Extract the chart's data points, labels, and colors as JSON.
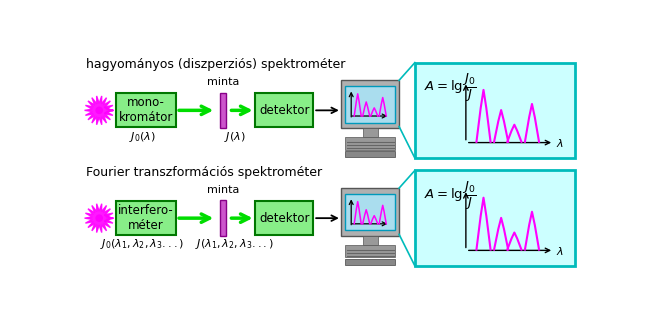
{
  "title1": "hagyományos (diszperziós) spektrométer",
  "title2": "Fourier transzformációs spektrométer",
  "box1_text": "mono-\nkromátor",
  "box2_text": "detektor",
  "box3_text": "interfero-\nméter",
  "box4_text": "detektor",
  "minta_text": "minta",
  "j0_lambda": "$J_0(\\lambda)$",
  "j_lambda": "$J(\\lambda)$",
  "j0_lambda2": "$J_0(\\lambda_1,\\lambda_2,\\lambda_3...)$",
  "j_lambda2": "$J(\\lambda_1,\\lambda_2,\\lambda_3...)$",
  "formula": "$A = \\mathrm{lg}\\,\\dfrac{J_0}{J}$",
  "lambda_label": "$\\lambda$",
  "green_color": "#00dd00",
  "magenta_color": "#ff00ff",
  "box_face": "#88ee88",
  "box_edge": "#007700",
  "cyan_face": "#ccffff",
  "cyan_edge": "#00bbbb",
  "background": "#ffffff",
  "monitor_frame": "#bbbbbb",
  "monitor_screen_top": "#88ccee",
  "monitor_stand": "#999999",
  "monitor_kbd": "#777777"
}
